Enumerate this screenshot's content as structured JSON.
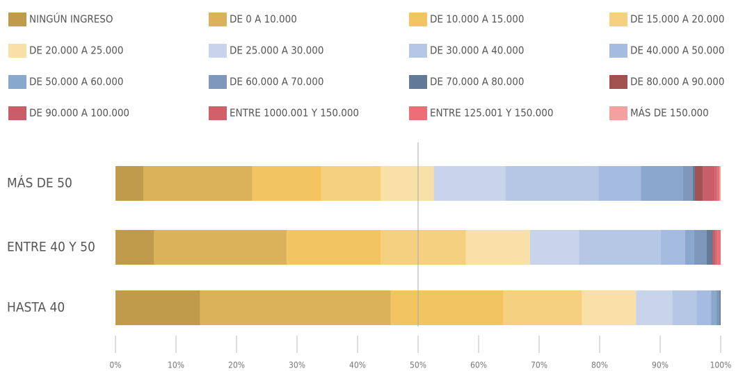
{
  "chart_data": {
    "type": "stacked_barh",
    "categories": [
      "MÁS DE 50",
      "ENTRE 40 Y 50",
      "HASTA 40"
    ],
    "series": [
      {
        "name": "NINGÚN INGRESO",
        "color": "#bf9b4b",
        "values": [
          4.6,
          6.4,
          14.0
        ]
      },
      {
        "name": "DE 0 A 10.000",
        "color": "#d9b25a",
        "values": [
          18.0,
          21.9,
          31.5
        ]
      },
      {
        "name": "DE 10.000 A 15.000",
        "color": "#f2c462",
        "values": [
          11.4,
          15.5,
          18.6
        ]
      },
      {
        "name": "DE 15.000 A 20.000",
        "color": "#f5d080",
        "values": [
          9.8,
          14.1,
          13.0
        ]
      },
      {
        "name": "DE 20.000 A 25.000",
        "color": "#f8e0a8",
        "values": [
          8.8,
          10.6,
          8.9
        ]
      },
      {
        "name": "DE 25.000 A 30.000",
        "color": "#c8d4ec",
        "values": [
          11.8,
          8.1,
          6.0
        ]
      },
      {
        "name": "DE 30.000 A 40.000",
        "color": "#b5c7e5",
        "values": [
          15.4,
          13.5,
          4.0
        ]
      },
      {
        "name": "DE 40.000 A 50.000",
        "color": "#a5bbe0",
        "values": [
          7.0,
          4.0,
          2.4
        ]
      },
      {
        "name": "DE 50.000 A 60.000",
        "color": "#8aa7cd",
        "values": [
          6.9,
          1.5,
          0.9
        ]
      },
      {
        "name": "DE 60.000 A 70.000",
        "color": "#7f97bb",
        "values": [
          1.7,
          2.1,
          0.5
        ]
      },
      {
        "name": "DE 70.000 A 80.000",
        "color": "#627a98",
        "values": [
          0.3,
          0.8,
          0.1
        ]
      },
      {
        "name": "DE 80.000 A 90.000",
        "color": "#a35050",
        "values": [
          1.4,
          0.2,
          0.1
        ]
      },
      {
        "name": "DE 90.000 A 100.000",
        "color": "#c95d68",
        "values": [
          1.9,
          0.4,
          0
        ]
      },
      {
        "name": "ENTRE 1000.001 Y 150.000",
        "color": "#d0606a",
        "values": [
          0.4,
          0.3,
          0
        ]
      },
      {
        "name": "ENTRE 125.001 Y 150.000",
        "color": "#ec6f78",
        "values": [
          0.4,
          0.6,
          0
        ]
      },
      {
        "name": "MÁS DE 150.000",
        "color": "#f3a0a0",
        "values": [
          0.2,
          0,
          0
        ]
      }
    ],
    "xlim": [
      0,
      100
    ],
    "xticks": [
      {
        "value": 0,
        "label": "0%"
      },
      {
        "value": 10,
        "label": "10%"
      },
      {
        "value": 20,
        "label": "20%"
      },
      {
        "value": 30,
        "label": "30%"
      },
      {
        "value": 40,
        "label": "40%"
      },
      {
        "value": 50,
        "label": "50%"
      },
      {
        "value": 60,
        "label": "60%"
      },
      {
        "value": 70,
        "label": "70%"
      },
      {
        "value": 80,
        "label": "80%"
      },
      {
        "value": 90,
        "label": "90%"
      },
      {
        "value": 100,
        "label": "100%"
      }
    ],
    "reference_line": 50,
    "legend": "top"
  }
}
